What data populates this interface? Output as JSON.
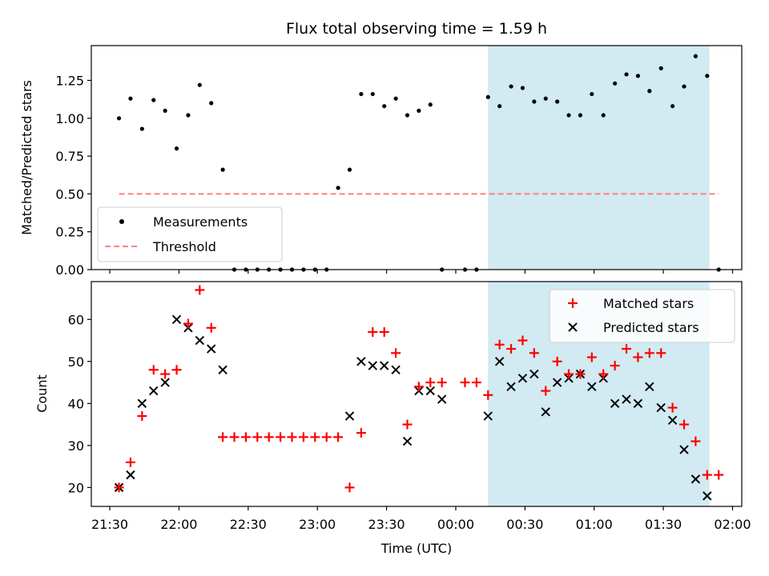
{
  "chart_data": [
    {
      "type": "scatter",
      "title": "Flux total observing time = 1.59 h",
      "ylabel": "Matched/Predicted stars",
      "xlabel": "",
      "ylim": [
        0,
        1.48
      ],
      "xlim": [
        "21:22",
        "02:04"
      ],
      "grid": false,
      "legend_position": "lower-left",
      "yticks": [
        "0.00",
        "0.25",
        "0.50",
        "0.75",
        "1.00",
        "1.25"
      ],
      "shaded_region": {
        "start": "00:14",
        "end": "01:50",
        "color": "#add8e6"
      },
      "series": [
        {
          "name": "Measurements",
          "kind": "points",
          "color": "#000000",
          "x": [
            "21:34",
            "21:39",
            "21:44",
            "21:49",
            "21:54",
            "21:59",
            "22:04",
            "22:09",
            "22:14",
            "22:19",
            "22:24",
            "22:29",
            "22:34",
            "22:39",
            "22:44",
            "22:49",
            "22:54",
            "22:59",
            "23:04",
            "23:09",
            "23:14",
            "23:19",
            "23:24",
            "23:29",
            "23:34",
            "23:39",
            "23:44",
            "23:49",
            "23:54",
            "00:04",
            "00:09",
            "00:14",
            "00:19",
            "00:24",
            "00:29",
            "00:34",
            "00:39",
            "00:44",
            "00:49",
            "00:54",
            "00:59",
            "01:04",
            "01:09",
            "01:14",
            "01:19",
            "01:24",
            "01:29",
            "01:34",
            "01:39",
            "01:44",
            "01:49",
            "01:54"
          ],
          "y": [
            1.0,
            1.13,
            0.93,
            1.12,
            1.05,
            0.8,
            1.02,
            1.22,
            1.1,
            0.66,
            0,
            0,
            0,
            0,
            0,
            0,
            0,
            0,
            0,
            0.54,
            0.66,
            1.16,
            1.16,
            1.08,
            1.13,
            1.02,
            1.05,
            1.09,
            0,
            0,
            0,
            1.14,
            1.08,
            1.21,
            1.2,
            1.11,
            1.13,
            1.11,
            1.02,
            1.02,
            1.16,
            1.02,
            1.23,
            1.29,
            1.28,
            1.18,
            1.33,
            1.08,
            1.21,
            1.41,
            1.28,
            0
          ]
        },
        {
          "name": "Threshold",
          "kind": "dashed-line",
          "color": "#ff7f7f",
          "x": [
            "21:34",
            "01:54"
          ],
          "y": [
            0.5,
            0.5
          ]
        }
      ]
    },
    {
      "type": "scatter",
      "title": "",
      "xlabel": "Time (UTC)",
      "ylabel": "Count",
      "ylim": [
        15.5,
        69
      ],
      "xlim": [
        "21:22",
        "02:04"
      ],
      "grid": false,
      "legend_position": "top-right",
      "yticks": [
        "20",
        "30",
        "40",
        "50",
        "60"
      ],
      "xticks": [
        "21:30",
        "22:00",
        "22:30",
        "23:00",
        "23:30",
        "00:00",
        "00:30",
        "01:00",
        "01:30",
        "02:00"
      ],
      "shaded_region": {
        "start": "00:14",
        "end": "01:50",
        "color": "#add8e6"
      },
      "series": [
        {
          "name": "Matched stars",
          "marker": "plus",
          "color": "#ff0000",
          "x": [
            "21:34",
            "21:39",
            "21:44",
            "21:49",
            "21:54",
            "21:59",
            "22:04",
            "22:09",
            "22:14",
            "22:19",
            "22:24",
            "22:29",
            "22:34",
            "22:39",
            "22:44",
            "22:49",
            "22:54",
            "22:59",
            "23:04",
            "23:09",
            "23:14",
            "23:19",
            "23:24",
            "23:29",
            "23:34",
            "23:39",
            "23:44",
            "23:49",
            "23:54",
            "00:04",
            "00:09",
            "00:14",
            "00:19",
            "00:24",
            "00:29",
            "00:34",
            "00:39",
            "00:44",
            "00:49",
            "00:54",
            "00:59",
            "01:04",
            "01:09",
            "01:14",
            "01:19",
            "01:24",
            "01:29",
            "01:34",
            "01:39",
            "01:44",
            "01:49",
            "01:54"
          ],
          "y": [
            20,
            26,
            37,
            48,
            47,
            48,
            59,
            67,
            58,
            32,
            32,
            32,
            32,
            32,
            32,
            32,
            32,
            32,
            32,
            32,
            20,
            33,
            57,
            57,
            52,
            35,
            44,
            45,
            45,
            45,
            45,
            42,
            54,
            53,
            55,
            52,
            43,
            50,
            47,
            47,
            51,
            47,
            49,
            53,
            51,
            52,
            52,
            39,
            35,
            31,
            23,
            23
          ]
        },
        {
          "name": "Predicted stars",
          "marker": "x",
          "color": "#000000",
          "x": [
            "21:34",
            "21:39",
            "21:44",
            "21:49",
            "21:54",
            "21:59",
            "22:04",
            "22:09",
            "22:14",
            "22:19",
            "23:14",
            "23:19",
            "23:24",
            "23:29",
            "23:34",
            "23:39",
            "23:44",
            "23:49",
            "23:54",
            "00:14",
            "00:19",
            "00:24",
            "00:29",
            "00:34",
            "00:39",
            "00:44",
            "00:49",
            "00:54",
            "00:59",
            "01:04",
            "01:09",
            "01:14",
            "01:19",
            "01:24",
            "01:29",
            "01:34",
            "01:39",
            "01:44",
            "01:49"
          ],
          "y": [
            20,
            23,
            40,
            43,
            45,
            60,
            58,
            55,
            53,
            48,
            37,
            50,
            49,
            49,
            48,
            31,
            43,
            43,
            41,
            37,
            50,
            44,
            46,
            47,
            38,
            45,
            46,
            47,
            44,
            46,
            40,
            41,
            40,
            44,
            39,
            36,
            29,
            22,
            18
          ]
        }
      ]
    }
  ]
}
